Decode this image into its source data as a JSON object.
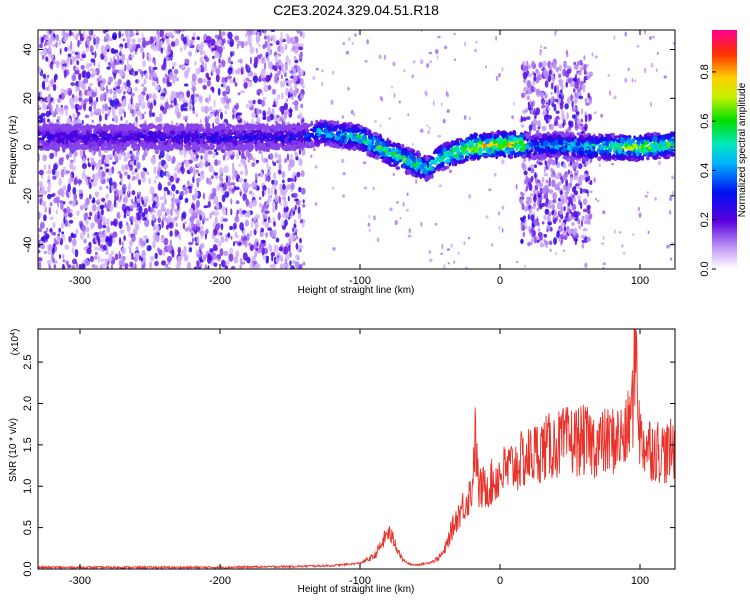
{
  "title": "C2E3.2024.329.04.51.R18",
  "colors": {
    "snr_line": "#e8322a",
    "spec_background": "#ffffff",
    "spec_speckle": "#7a2cf0",
    "spec_ridge": "#1c24d8"
  },
  "chart_data": [
    {
      "type": "heatmap",
      "xlabel": "Height of straight line (km)",
      "ylabel": "Frequency (Hz)",
      "xlim": [
        -330,
        125
      ],
      "ylim": [
        -50,
        48
      ],
      "x_ticks": [
        -300,
        -200,
        -100,
        0,
        100
      ],
      "x_tick_labels": [
        "-300",
        "-200",
        "-100",
        "0",
        "100"
      ],
      "y_ticks": [
        -40,
        -20,
        0,
        20,
        40
      ],
      "y_tick_labels": [
        "-40",
        "-20",
        "0",
        "20",
        "40"
      ],
      "grid": false,
      "colorbar": {
        "label": "Normalized spectral amplitude",
        "range": [
          0.0,
          0.97
        ],
        "ticks": [
          0.0,
          0.2,
          0.4,
          0.6,
          0.8
        ],
        "tick_labels": [
          "0.0",
          "0.2",
          "0.4",
          "0.6",
          "0.8"
        ]
      },
      "noise_region_x": [
        -330,
        -140
      ],
      "ridge": {
        "x": [
          -330,
          -140,
          -130,
          -100,
          -80,
          -60,
          -52,
          -45,
          -35,
          -20,
          0,
          15,
          20,
          40,
          60,
          75,
          100,
          125
        ],
        "frequency": [
          4,
          4,
          6,
          4,
          -2,
          -7,
          -9,
          -5,
          -3,
          0,
          1,
          1,
          0,
          1,
          0,
          0,
          0,
          1
        ],
        "peak_amplitude": [
          0.3,
          0.35,
          0.55,
          0.65,
          0.7,
          0.75,
          0.6,
          0.7,
          0.75,
          0.9,
          0.93,
          0.95,
          0.5,
          0.55,
          0.6,
          0.7,
          0.85,
          0.7
        ]
      },
      "spread_regions": [
        {
          "x": [
            15,
            65
          ],
          "frequency": [
            -40,
            35
          ]
        }
      ]
    },
    {
      "type": "line",
      "xlabel": "Height of straight line (km)",
      "ylabel": "SNR (10 * v/v)",
      "y_multiplier_label": "(x10",
      "y_multiplier_exponent": "4",
      "xlim": [
        -330,
        125
      ],
      "ylim": [
        0.0,
        2.9
      ],
      "x_ticks": [
        -300,
        -200,
        -100,
        0,
        100
      ],
      "x_tick_labels": [
        "-300",
        "-200",
        "-100",
        "0",
        "100"
      ],
      "y_ticks": [
        0.0,
        0.5,
        1.0,
        1.5,
        2.0,
        2.5
      ],
      "y_tick_labels": [
        "0.0",
        "0.5",
        "1.0",
        "1.5",
        "2.0",
        "2.5"
      ],
      "grid": false,
      "series": [
        {
          "x": [
            -330,
            -250,
            -200,
            -150,
            -120,
            -100,
            -90,
            -85,
            -80,
            -75,
            -70,
            -65,
            -60,
            -55,
            -50,
            -45,
            -40,
            -35,
            -30,
            -25,
            -20,
            -18,
            -15,
            -10,
            -5,
            0,
            10,
            20,
            30,
            40,
            50,
            60,
            70,
            80,
            90,
            95,
            97,
            100,
            110,
            120,
            125
          ],
          "y": [
            0.02,
            0.02,
            0.02,
            0.03,
            0.04,
            0.07,
            0.15,
            0.28,
            0.45,
            0.32,
            0.12,
            0.06,
            0.05,
            0.06,
            0.08,
            0.12,
            0.2,
            0.45,
            0.65,
            0.8,
            0.95,
            1.6,
            0.95,
            1.0,
            1.05,
            1.15,
            1.25,
            1.35,
            1.45,
            1.5,
            1.55,
            1.55,
            1.5,
            1.55,
            1.6,
            2.0,
            2.85,
            1.55,
            1.45,
            1.4,
            1.45
          ]
        }
      ]
    }
  ]
}
